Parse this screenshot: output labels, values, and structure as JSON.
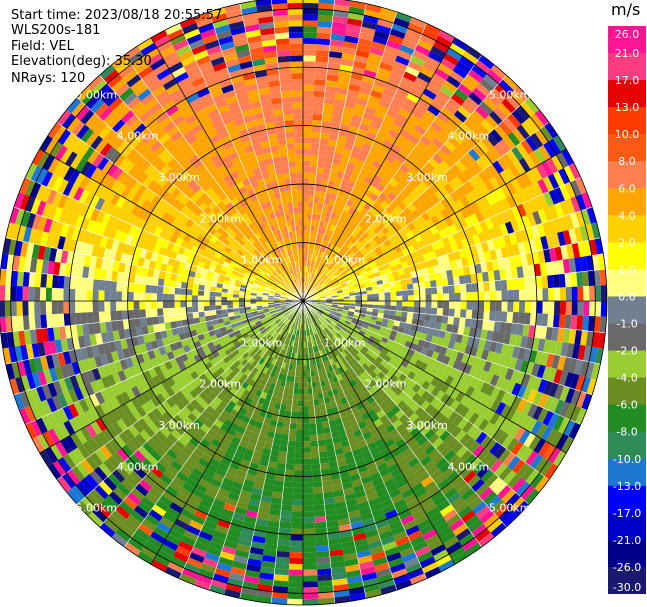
{
  "header": {
    "start_time": "Start time: 2023/08/18 20:55:57",
    "instrument": "WLS200s-181",
    "field": "Field: VEL",
    "elevation": "Elevation(deg): 35.30",
    "nrays": "NRays: 120"
  },
  "chart_data": {
    "type": "heatmap",
    "projection": "polar PPI",
    "range_ring_labels": [
      "1.00km",
      "2.00km",
      "3.00km",
      "4.00km",
      "5.00km"
    ],
    "range_rings_km": [
      1,
      2,
      3,
      4,
      5
    ],
    "max_range_km": 5.2,
    "n_rays": 120,
    "colorbar": {
      "unit": "m/s",
      "tick_labels": [
        "26.0",
        "21.0",
        "17.0",
        "13.0",
        "10.0",
        "8.0",
        "6.0",
        "4.0",
        "2.0",
        "1.0",
        "0.0",
        "-1.0",
        "-2.0",
        "-4.0",
        "-6.0",
        "-8.0",
        "-10.0",
        "-13.0",
        "-17.0",
        "-21.0",
        "-26.0",
        "-30.0"
      ],
      "bins": [
        {
          "color": "#ff1493"
        },
        {
          "color": "#ff3c82"
        },
        {
          "color": "#e60000"
        },
        {
          "color": "#ff3c00"
        },
        {
          "color": "#ff5a14"
        },
        {
          "color": "#ff7f50"
        },
        {
          "color": "#ffa500"
        },
        {
          "color": "#ffd000"
        },
        {
          "color": "#ffff00"
        },
        {
          "color": "#ffff80"
        },
        {
          "color": "#708090"
        },
        {
          "color": "#696969"
        },
        {
          "color": "#9acd32"
        },
        {
          "color": "#6b8e23"
        },
        {
          "color": "#228b22"
        },
        {
          "color": "#2e8b57"
        },
        {
          "color": "#1e78d2"
        },
        {
          "color": "#0000ff"
        },
        {
          "color": "#0000cd"
        },
        {
          "color": "#00008b"
        },
        {
          "color": "#191970"
        }
      ]
    },
    "velocity_pattern": {
      "description": "positive velocities (orange/yellow) in the north half, negative (green/blue) in the south half; noisy multicolour at far range",
      "north_peak": 8.0,
      "south_peak": -8.0,
      "noise_start_fraction_of_range": 0.7
    }
  }
}
